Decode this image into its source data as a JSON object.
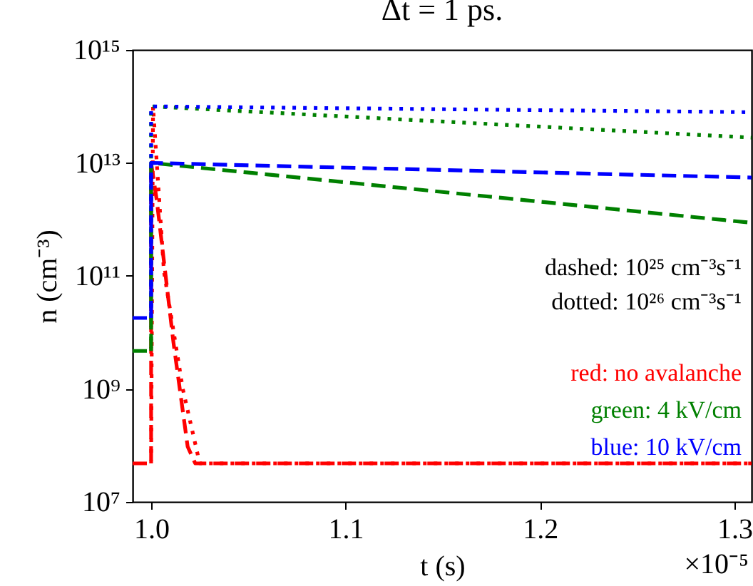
{
  "chart_data": {
    "type": "line",
    "title": "Δt = 1 ps.",
    "xlabel": "t (s)",
    "ylabel": "n (cm⁻³)",
    "log": "y",
    "grid": false,
    "xlim": [
      0.9905,
      1.3088
    ],
    "xticks": [
      {
        "value": 1,
        "label": "1.0"
      },
      1.1,
      1.2,
      1.3
    ],
    "ylim": [
      10000000.0,
      1000000000000000.0
    ],
    "yticks": [
      {
        "value": 10000000.0,
        "label": "10⁷"
      },
      {
        "value": 1000000000.0,
        "label": "10⁹"
      },
      {
        "value": 100000000000.0,
        "label": "10¹¹"
      },
      {
        "value": 10000000000000.0,
        "label": "10¹³"
      },
      {
        "value": 1000000000000000.0,
        "label": "10¹⁵"
      }
    ],
    "annotations": [
      "dashed: 10²⁵ cm⁻³s⁻¹",
      "dotted: 10²⁶ cm⁻³s⁻¹",
      "red: no avalanche",
      "green: 4 kV/cm",
      "blue: 10 kV/cm",
      "×10⁻⁵"
    ],
    "series": [
      {
        "color": "#ff0000",
        "line_style": "dashed",
        "x": [
          0.9905,
          1.0,
          1.0,
          1.0029,
          1.0115,
          1.0188,
          1.0227,
          1.3088
        ],
        "values": [
          48000000.0,
          48000000.0,
          10000000000000.0,
          2200000000000.0,
          6600000000.0,
          95000000.0,
          48000000.0,
          48000000.0
        ]
      },
      {
        "color": "#ff0000",
        "line_style": "dotted",
        "x": [
          1.0,
          1.001,
          1.0066,
          1.0163,
          1.025,
          1.3088
        ],
        "values": [
          48000000.0,
          100000000000000.0,
          120000000000.0,
          1000000000.0,
          48000000.0,
          48000000.0
        ]
      },
      {
        "color": "#008000",
        "line_style": "dashed",
        "x": [
          0.9905,
          1.0,
          1.0,
          1.3088
        ],
        "values": [
          4700000000.0,
          4700000000.0,
          10000000000000.0,
          870000000000.0
        ]
      },
      {
        "color": "#008000",
        "line_style": "dotted",
        "x": [
          1.0,
          1.0,
          1.3088
        ],
        "values": [
          4700000000.0,
          100000000000000.0,
          28000000000000.0
        ]
      },
      {
        "color": "#0000ff",
        "line_style": "dashed",
        "x": [
          0.9905,
          1.0,
          1.0,
          1.3088
        ],
        "values": [
          18000000000.0,
          18000000000.0,
          10000000000000.0,
          5500000000000.0
        ]
      },
      {
        "color": "#0000ff",
        "line_style": "dotted",
        "x": [
          1.0,
          1.0,
          1.3088
        ],
        "values": [
          18000000000.0,
          100000000000000.0,
          79000000000000.0
        ]
      }
    ]
  }
}
